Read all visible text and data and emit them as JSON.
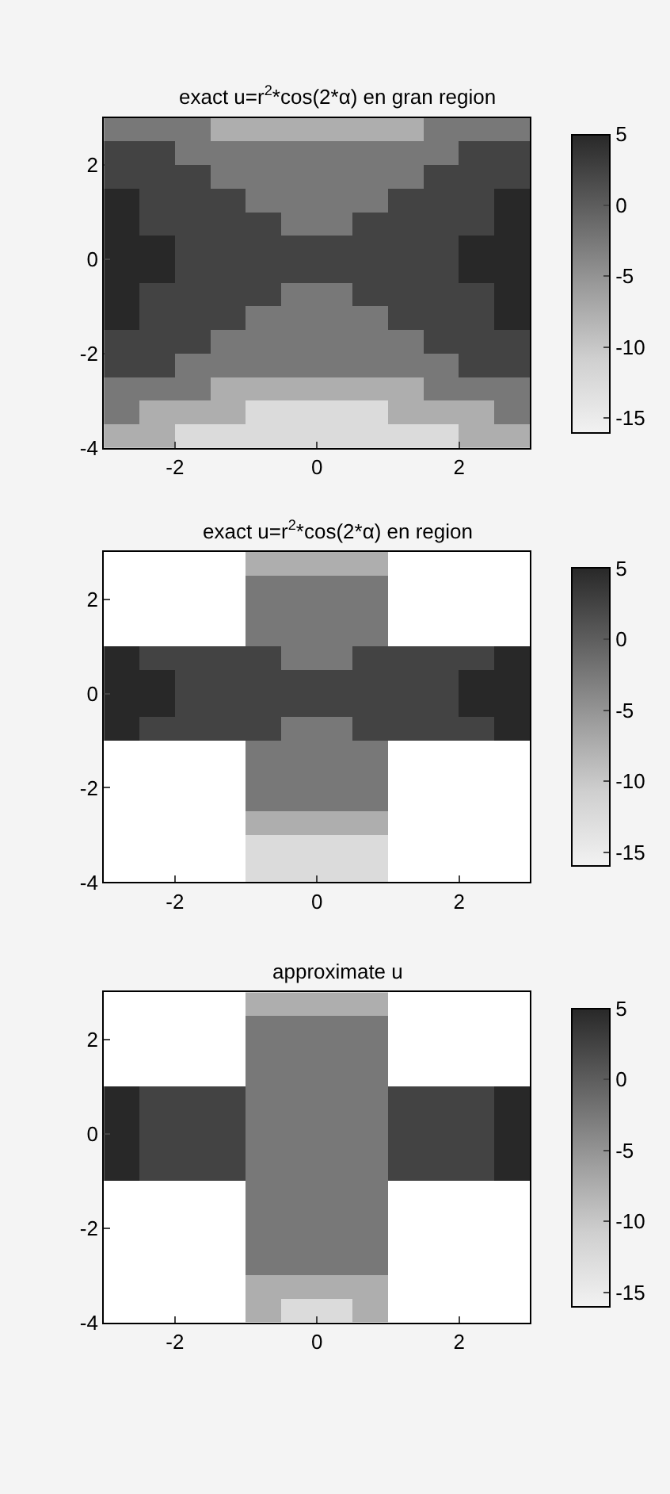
{
  "chart_data": [
    {
      "type": "heatmap",
      "title": "exact u=r$^{2}$*cos(2*α) en gran region",
      "x": [
        -2.75,
        -2.25,
        -1.75,
        -1.25,
        -0.75,
        -0.25,
        0.25,
        0.75,
        1.25,
        1.75,
        2.25,
        2.75
      ],
      "y": [
        2.75,
        2.25,
        1.75,
        1.25,
        0.75,
        0.25,
        -0.25,
        -0.75,
        -1.25,
        -1.75,
        -2.25,
        -2.75,
        -3.25,
        -3.75
      ],
      "cells": [
        [
          -2.5,
          -2.5,
          -2.5,
          -7.5,
          -7.5,
          -7.5,
          -7.5,
          -7.5,
          -7.5,
          -2.5,
          -2.5,
          -2.5
        ],
        [
          2.5,
          2.5,
          -2.5,
          -2.5,
          -2.5,
          -2.5,
          -2.5,
          -2.5,
          -2.5,
          -2.5,
          2.5,
          2.5
        ],
        [
          2.5,
          2.5,
          2.5,
          -2.5,
          -2.5,
          -2.5,
          -2.5,
          -2.5,
          -2.5,
          2.5,
          2.5,
          2.5
        ],
        [
          5,
          2.5,
          2.5,
          2.5,
          -2.5,
          -2.5,
          -2.5,
          -2.5,
          2.5,
          2.5,
          2.5,
          5
        ],
        [
          5,
          2.5,
          2.5,
          2.5,
          2.5,
          -2.5,
          -2.5,
          2.5,
          2.5,
          2.5,
          2.5,
          5
        ],
        [
          5,
          5,
          2.5,
          2.5,
          2.5,
          2.5,
          2.5,
          2.5,
          2.5,
          2.5,
          5,
          5
        ],
        [
          5,
          5,
          2.5,
          2.5,
          2.5,
          2.5,
          2.5,
          2.5,
          2.5,
          2.5,
          5,
          5
        ],
        [
          5,
          2.5,
          2.5,
          2.5,
          2.5,
          -2.5,
          -2.5,
          2.5,
          2.5,
          2.5,
          2.5,
          5
        ],
        [
          5,
          2.5,
          2.5,
          2.5,
          -2.5,
          -2.5,
          -2.5,
          -2.5,
          2.5,
          2.5,
          2.5,
          5
        ],
        [
          2.5,
          2.5,
          2.5,
          -2.5,
          -2.5,
          -2.5,
          -2.5,
          -2.5,
          -2.5,
          2.5,
          2.5,
          2.5
        ],
        [
          2.5,
          2.5,
          -2.5,
          -2.5,
          -2.5,
          -2.5,
          -2.5,
          -2.5,
          -2.5,
          -2.5,
          2.5,
          2.5
        ],
        [
          -2.5,
          -2.5,
          -2.5,
          -7.5,
          -7.5,
          -7.5,
          -7.5,
          -7.5,
          -7.5,
          -2.5,
          -2.5,
          -2.5
        ],
        [
          -2.5,
          -7.5,
          -7.5,
          -7.5,
          -12.5,
          -12.5,
          -12.5,
          -12.5,
          -7.5,
          -7.5,
          -7.5,
          -2.5
        ],
        [
          -7.5,
          -7.5,
          -12.5,
          -12.5,
          -12.5,
          -12.5,
          -12.5,
          -12.5,
          -12.5,
          -12.5,
          -7.5,
          -7.5
        ]
      ],
      "xlim": [
        -3,
        3
      ],
      "ylim": [
        -4,
        3
      ],
      "xticks": [
        -2,
        0,
        2
      ],
      "yticks": [
        -4,
        -2,
        0,
        2
      ],
      "clim": [
        -16,
        5
      ],
      "cticks": [
        -15,
        -10,
        -5,
        0,
        5
      ]
    },
    {
      "type": "heatmap",
      "title": "exact u=r$^{2}$*cos(2*α) en region",
      "x": [
        -2.75,
        -2.25,
        -1.75,
        -1.25,
        -0.75,
        -0.25,
        0.25,
        0.75,
        1.25,
        1.75,
        2.25,
        2.75
      ],
      "y": [
        2.75,
        2.25,
        1.75,
        1.25,
        0.75,
        0.25,
        -0.25,
        -0.75,
        -1.25,
        -1.75,
        -2.25,
        -2.75,
        -3.25,
        -3.75
      ],
      "cells": [
        [
          null,
          null,
          null,
          null,
          -7.5,
          -7.5,
          -7.5,
          -7.5,
          null,
          null,
          null,
          null
        ],
        [
          null,
          null,
          null,
          null,
          -2.5,
          -2.5,
          -2.5,
          -2.5,
          null,
          null,
          null,
          null
        ],
        [
          null,
          null,
          null,
          null,
          -2.5,
          -2.5,
          -2.5,
          -2.5,
          null,
          null,
          null,
          null
        ],
        [
          null,
          null,
          null,
          null,
          -2.5,
          -2.5,
          -2.5,
          -2.5,
          null,
          null,
          null,
          null
        ],
        [
          5,
          2.5,
          2.5,
          2.5,
          2.5,
          -2.5,
          -2.5,
          2.5,
          2.5,
          2.5,
          2.5,
          5
        ],
        [
          5,
          5,
          2.5,
          2.5,
          2.5,
          2.5,
          2.5,
          2.5,
          2.5,
          2.5,
          5,
          5
        ],
        [
          5,
          5,
          2.5,
          2.5,
          2.5,
          2.5,
          2.5,
          2.5,
          2.5,
          2.5,
          5,
          5
        ],
        [
          5,
          2.5,
          2.5,
          2.5,
          2.5,
          -2.5,
          -2.5,
          2.5,
          2.5,
          2.5,
          2.5,
          5
        ],
        [
          null,
          null,
          null,
          null,
          -2.5,
          -2.5,
          -2.5,
          -2.5,
          null,
          null,
          null,
          null
        ],
        [
          null,
          null,
          null,
          null,
          -2.5,
          -2.5,
          -2.5,
          -2.5,
          null,
          null,
          null,
          null
        ],
        [
          null,
          null,
          null,
          null,
          -2.5,
          -2.5,
          -2.5,
          -2.5,
          null,
          null,
          null,
          null
        ],
        [
          null,
          null,
          null,
          null,
          -7.5,
          -7.5,
          -7.5,
          -7.5,
          null,
          null,
          null,
          null
        ],
        [
          null,
          null,
          null,
          null,
          -12.5,
          -12.5,
          -12.5,
          -12.5,
          null,
          null,
          null,
          null
        ],
        [
          null,
          null,
          null,
          null,
          -12.5,
          -12.5,
          -12.5,
          -12.5,
          null,
          null,
          null,
          null
        ]
      ],
      "xlim": [
        -3,
        3
      ],
      "ylim": [
        -4,
        3
      ],
      "xticks": [
        -2,
        0,
        2
      ],
      "yticks": [
        -4,
        -2,
        0,
        2
      ],
      "clim": [
        -16,
        5
      ],
      "cticks": [
        -15,
        -10,
        -5,
        0,
        5
      ]
    },
    {
      "type": "heatmap",
      "title": "approximate u",
      "x": [
        -2.75,
        -2.25,
        -1.75,
        -1.25,
        -0.75,
        -0.25,
        0.25,
        0.75,
        1.25,
        1.75,
        2.25,
        2.75
      ],
      "y": [
        2.75,
        2.25,
        1.75,
        1.25,
        0.75,
        0.25,
        -0.25,
        -0.75,
        -1.25,
        -1.75,
        -2.25,
        -2.75,
        -3.25,
        -3.75
      ],
      "cells": [
        [
          null,
          null,
          null,
          null,
          -7.5,
          -7.5,
          -7.5,
          -7.5,
          null,
          null,
          null,
          null
        ],
        [
          null,
          null,
          null,
          null,
          -2.5,
          -2.5,
          -2.5,
          -2.5,
          null,
          null,
          null,
          null
        ],
        [
          null,
          null,
          null,
          null,
          -2.5,
          -2.5,
          -2.5,
          -2.5,
          null,
          null,
          null,
          null
        ],
        [
          null,
          null,
          null,
          null,
          -2.5,
          -2.5,
          -2.5,
          -2.5,
          null,
          null,
          null,
          null
        ],
        [
          5,
          2.5,
          2.5,
          2.5,
          -2.5,
          -2.5,
          -2.5,
          -2.5,
          2.5,
          2.5,
          2.5,
          5
        ],
        [
          5,
          2.5,
          2.5,
          2.5,
          -2.5,
          -2.5,
          -2.5,
          -2.5,
          2.5,
          2.5,
          2.5,
          5
        ],
        [
          5,
          2.5,
          2.5,
          2.5,
          -2.5,
          -2.5,
          -2.5,
          -2.5,
          2.5,
          2.5,
          2.5,
          5
        ],
        [
          5,
          2.5,
          2.5,
          2.5,
          -2.5,
          -2.5,
          -2.5,
          -2.5,
          2.5,
          2.5,
          2.5,
          5
        ],
        [
          null,
          null,
          null,
          null,
          -2.5,
          -2.5,
          -2.5,
          -2.5,
          null,
          null,
          null,
          null
        ],
        [
          null,
          null,
          null,
          null,
          -2.5,
          -2.5,
          -2.5,
          -2.5,
          null,
          null,
          null,
          null
        ],
        [
          null,
          null,
          null,
          null,
          -2.5,
          -2.5,
          -2.5,
          -2.5,
          null,
          null,
          null,
          null
        ],
        [
          null,
          null,
          null,
          null,
          -2.5,
          -2.5,
          -2.5,
          -2.5,
          null,
          null,
          null,
          null
        ],
        [
          null,
          null,
          null,
          null,
          -7.5,
          -7.5,
          -7.5,
          -7.5,
          null,
          null,
          null,
          null
        ],
        [
          null,
          null,
          null,
          null,
          -7.5,
          -12.5,
          -12.5,
          -7.5,
          null,
          null,
          null,
          null
        ]
      ],
      "xlim": [
        -3,
        3
      ],
      "ylim": [
        -4,
        3
      ],
      "xticks": [
        -2,
        0,
        2
      ],
      "yticks": [
        -4,
        -2,
        0,
        2
      ],
      "clim": [
        -16,
        5
      ],
      "cticks": [
        -15,
        -10,
        -5,
        0,
        5
      ]
    }
  ]
}
